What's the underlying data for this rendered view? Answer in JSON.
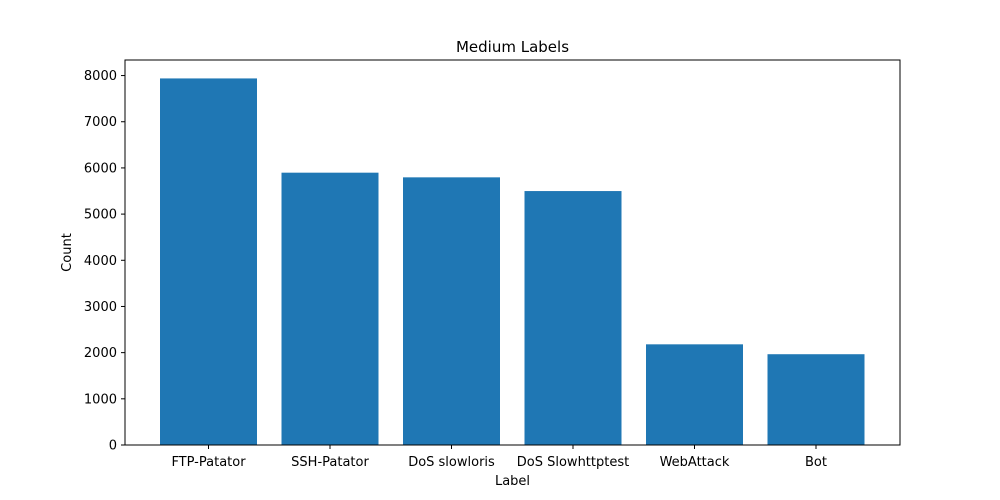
{
  "chart_data": {
    "type": "bar",
    "title": "Medium Labels",
    "xlabel": "Label",
    "ylabel": "Count",
    "categories": [
      "FTP-Patator",
      "SSH-Patator",
      "DoS slowloris",
      "DoS Slowhttptest",
      "WebAttack",
      "Bot"
    ],
    "values": [
      7938,
      5897,
      5796,
      5499,
      2180,
      1966
    ],
    "ylim": [
      0,
      8337
    ],
    "yticks": [
      0,
      1000,
      2000,
      3000,
      4000,
      5000,
      6000,
      7000,
      8000
    ],
    "grid": false,
    "bar_color": "#1f77b4"
  }
}
